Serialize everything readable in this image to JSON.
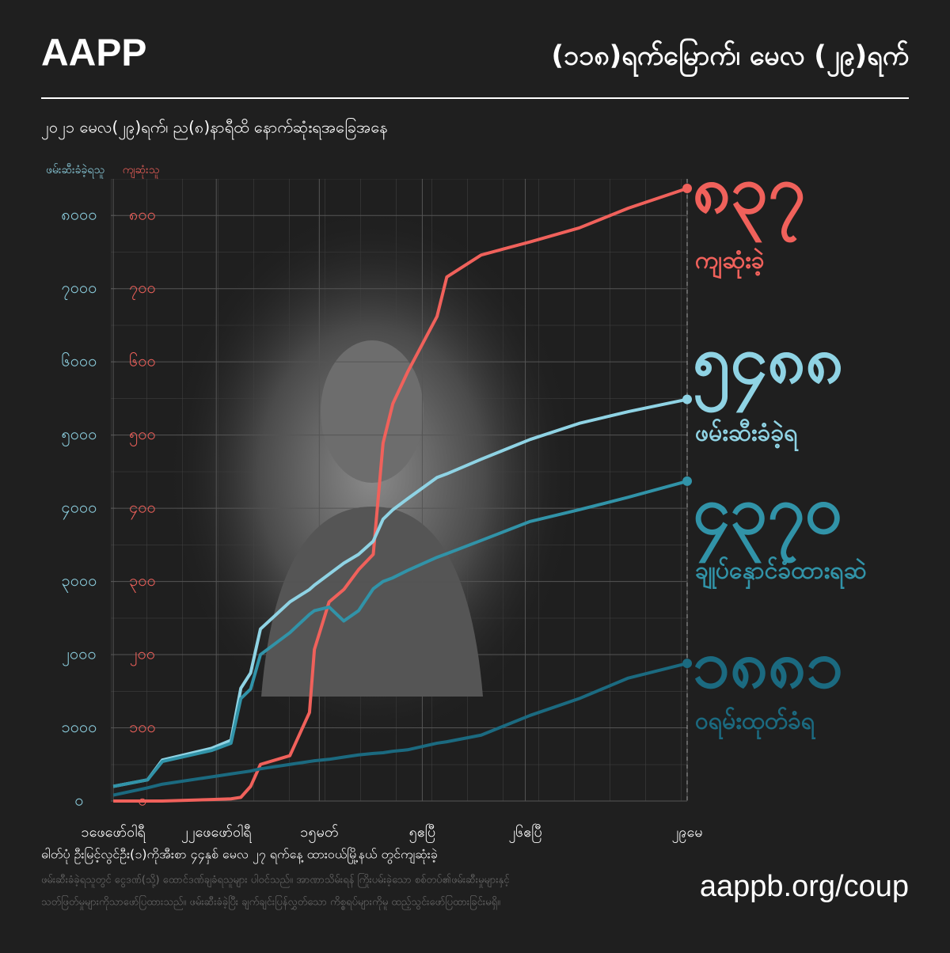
{
  "brand": "AAPP",
  "chart_data": {
    "type": "line",
    "title": "(၁၁၈)ရက်မြောက်၊ မေလ (၂၉)ရက်",
    "subtitle": "၂၀၂၁ မေလ(၂၉)ရက်၊ ည(၈)နာရီထိ နောက်ဆုံးရအခြေအနေ",
    "y_label": "ဖမ်းဆီးခံခဲ့ရသူ",
    "y2_label": "ကျဆုံးသူ",
    "x": [
      0,
      7,
      10,
      20,
      24,
      26,
      28,
      30,
      36,
      40,
      41,
      44,
      47,
      50,
      53,
      55,
      57,
      60,
      66,
      68,
      75,
      85,
      95,
      105,
      117
    ],
    "xlim": [
      -0.5,
      117
    ],
    "xticks": [
      {
        "value": 0,
        "label": "၁ဖေဖော်ဝါရီ"
      },
      {
        "value": 21,
        "label": "၂၂ဖေဖော်ဝါရီ"
      },
      {
        "value": 42,
        "label": "၁၅မတ်"
      },
      {
        "value": 63,
        "label": "၅ဧပြီ"
      },
      {
        "value": 84,
        "label": "၂၆ဧပြီ"
      },
      {
        "value": 117,
        "label": "၂၉မေ"
      }
    ],
    "ylim": [
      0,
      8500
    ],
    "yticks": [
      {
        "value": 0,
        "label": "၀"
      },
      {
        "value": 1000,
        "label": "၁၀၀၀"
      },
      {
        "value": 2000,
        "label": "၂၀၀၀"
      },
      {
        "value": 3000,
        "label": "၃၀၀၀"
      },
      {
        "value": 4000,
        "label": "၄၀၀၀"
      },
      {
        "value": 5000,
        "label": "၅၀၀၀"
      },
      {
        "value": 6000,
        "label": "၆၀၀၀"
      },
      {
        "value": 7000,
        "label": "၇၀၀၀"
      },
      {
        "value": 8000,
        "label": "၈၀၀၀"
      }
    ],
    "y2lim": [
      0,
      850
    ],
    "y2ticks": [
      {
        "value": 0,
        "label": "၀"
      },
      {
        "value": 100,
        "label": "၁၀၀"
      },
      {
        "value": 200,
        "label": "၂၀၀"
      },
      {
        "value": 300,
        "label": "၃၀၀"
      },
      {
        "value": 400,
        "label": "၄၀၀"
      },
      {
        "value": 500,
        "label": "၅၀၀"
      },
      {
        "value": 600,
        "label": "၆၀၀"
      },
      {
        "value": 700,
        "label": "၇၀၀"
      },
      {
        "value": 800,
        "label": "၈၀၀"
      }
    ],
    "grid": true,
    "series": [
      {
        "name": "ကျဆုံးခဲ့",
        "color": "#f0615b",
        "axis": "y2",
        "values": [
          0,
          0,
          0,
          2,
          3,
          5,
          20,
          50,
          62,
          121,
          207,
          272,
          289,
          316,
          337,
          489,
          543,
          586,
          662,
          716,
          746,
          764,
          783,
          810,
          837
        ],
        "value_labels": [
          null,
          null,
          null,
          null,
          null,
          null,
          null,
          null,
          null,
          null,
          null,
          null,
          null,
          null,
          null,
          null,
          null,
          null,
          null,
          null,
          null,
          null,
          null,
          null,
          "၈၃၇"
        ]
      },
      {
        "name": "ဖမ်းဆီးခံခဲ့ရ",
        "color": "#8fd3e4",
        "values": [
          200,
          290,
          560,
          720,
          830,
          1540,
          1750,
          2350,
          2720,
          2890,
          2950,
          3100,
          3250,
          3370,
          3550,
          3850,
          3980,
          4130,
          4420,
          4470,
          4670,
          4940,
          5160,
          5320,
          5488
        ],
        "value_labels": [
          null,
          null,
          null,
          null,
          null,
          null,
          null,
          null,
          null,
          null,
          null,
          null,
          null,
          null,
          null,
          null,
          null,
          null,
          null,
          null,
          null,
          null,
          null,
          null,
          "၅၄၈၈"
        ]
      },
      {
        "name": "ချုပ်နှောင်ခံထားရဆဲ",
        "color": "#3193a8",
        "values": [
          200,
          290,
          540,
          690,
          790,
          1400,
          1530,
          2000,
          2300,
          2550,
          2600,
          2650,
          2460,
          2600,
          2900,
          3000,
          3050,
          3150,
          3330,
          3380,
          3560,
          3820,
          3980,
          4150,
          4370
        ],
        "value_labels": [
          null,
          null,
          null,
          null,
          null,
          null,
          null,
          null,
          null,
          null,
          null,
          null,
          null,
          null,
          null,
          null,
          null,
          null,
          null,
          null,
          null,
          null,
          null,
          null,
          "၄၃၇၀"
        ]
      },
      {
        "name": "ဝရမ်းထုတ်ခံရ",
        "color": "#1b6a80",
        "values": [
          80,
          180,
          230,
          330,
          370,
          390,
          410,
          440,
          500,
          540,
          550,
          570,
          600,
          630,
          650,
          660,
          680,
          700,
          790,
          810,
          900,
          1170,
          1400,
          1680,
          1881
        ],
        "value_labels": [
          null,
          null,
          null,
          null,
          null,
          null,
          null,
          null,
          null,
          null,
          null,
          null,
          null,
          null,
          null,
          null,
          null,
          null,
          null,
          null,
          null,
          null,
          null,
          null,
          "၁၈၈၁"
        ]
      }
    ]
  },
  "footer": {
    "photo_caption": "ဓါတ်ပုံ ဦးမြင့်လွင်ဦး(၁)ကိုအီးစာ ၄၄နှစ် မေလ ၂၇ ရက်နေ့ ထားဝယ်မြို့နယ် တွင်ကျဆုံးခဲ့",
    "notes": [
      "ဖမ်းဆီးခံခဲ့ရသူတွင် ငွေဒဏ်(သို့) ထောင်ဒဏ်ချခံရသူများ ပါဝင်သည်။ အာဏာသိမ်းရန် ကြိုးပမ်းခဲ့သော စစ်တပ်၏ဖမ်းဆီးမှုများနှင့်",
      "သတ်ဖြတ်မှုများကိုသာဖော်ပြထားသည်။ ဖမ်းဆီးခံခဲ့ပြီး ချက်ချင်းပြန်လွှတ်သော ကိစ္စရပ်များကိုမူ ထည့်သွင်းဖော်ပြထားခြင်းမရှိ။"
    ],
    "url": "aappb.org/coup"
  }
}
